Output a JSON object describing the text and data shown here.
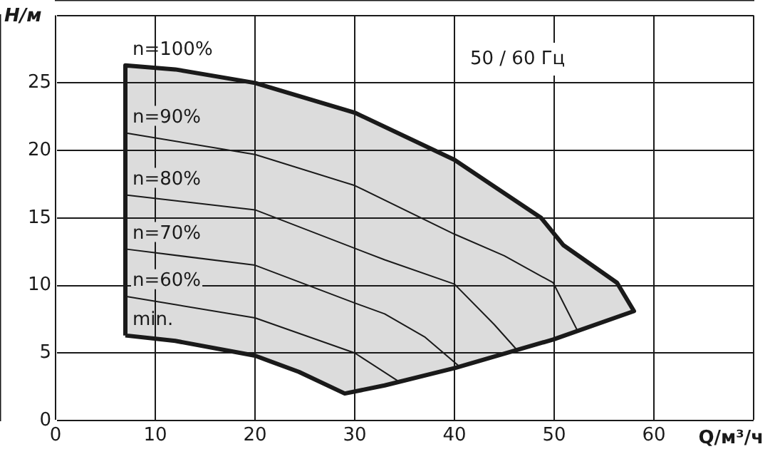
{
  "chart_data": {
    "type": "line",
    "subtitle": "50 / 60 Гц",
    "xlabel": "Q/м³/ч",
    "ylabel": "H/м",
    "xlim": [
      0,
      70
    ],
    "xticks": [
      0,
      10,
      20,
      30,
      40,
      50,
      60,
      {
        "value": 70,
        "label": null
      }
    ],
    "ylim": [
      0,
      30
    ],
    "yticks": [
      0,
      5,
      10,
      15,
      20,
      25,
      {
        "value": 30,
        "label": null
      }
    ],
    "grid": true,
    "legend": false,
    "marker": "none",
    "line_style": "solid",
    "series": [
      {
        "type": "area",
        "color": "#dcdcdc",
        "x": [
          7,
          7,
          12,
          20,
          30,
          40,
          48.7,
          50.9,
          56.3,
          58,
          49.9,
          40.1,
          33,
          29,
          24.4,
          20,
          12,
          7
        ],
        "values": [
          6.3,
          26.3,
          26,
          25,
          22.8,
          19.3,
          15,
          13,
          10.2,
          8.1,
          6,
          3.9,
          2.6,
          2,
          3.6,
          4.8,
          5.9,
          6.3
        ]
      },
      {
        "type": "line",
        "name": "n=90%",
        "color": "#1a1a1a",
        "x": [
          7,
          20,
          30,
          40,
          45,
          49.9,
          52.3
        ],
        "values": [
          21.3,
          19.7,
          17.4,
          13.8,
          12.2,
          10.2,
          6.7
        ]
      },
      {
        "type": "line",
        "name": "n=80%",
        "color": "#1a1a1a",
        "x": [
          7,
          20,
          33,
          40,
          44,
          46.3
        ],
        "values": [
          16.7,
          15.6,
          11.9,
          10.1,
          7.1,
          5.2
        ]
      },
      {
        "type": "line",
        "name": "n=70%",
        "color": "#1a1a1a",
        "x": [
          7,
          20,
          30,
          33,
          37,
          40.5
        ],
        "values": [
          12.7,
          11.5,
          8.7,
          7.9,
          6.2,
          4
        ]
      },
      {
        "type": "line",
        "name": "n=60%",
        "color": "#1a1a1a",
        "x": [
          7,
          20,
          30,
          34.4
        ],
        "values": [
          9.2,
          7.6,
          5,
          2.9
        ]
      }
    ],
    "annotations": [
      {
        "text": "n=100%",
        "x": 7,
        "y": 26.3
      },
      {
        "text": "min.",
        "x": 7,
        "y": 6.3
      }
    ]
  }
}
